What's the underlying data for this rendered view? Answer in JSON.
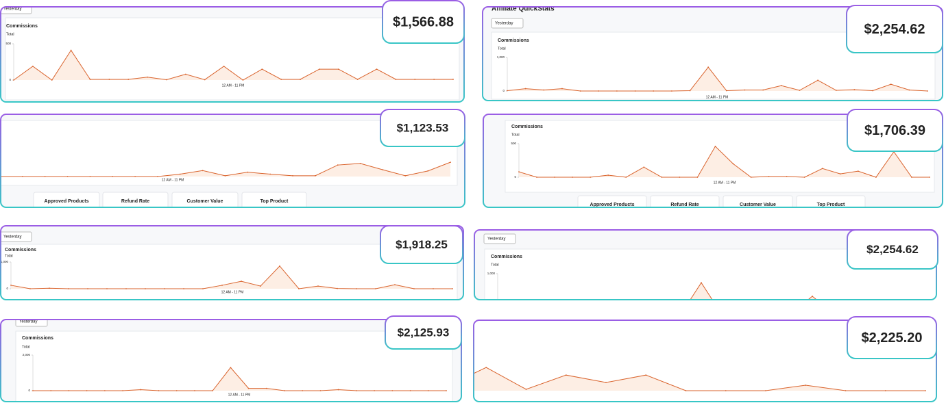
{
  "panels": [
    {
      "amount": "$1,566.88",
      "dropdown": "Yesterday",
      "metric": "Commissions",
      "sub": "Total",
      "x_label": "12 AM - 11 PM",
      "chart": {
        "ylim": [
          0,
          500
        ],
        "yticks": [
          0,
          500
        ],
        "values": [
          0,
          190,
          0,
          410,
          10,
          10,
          10,
          40,
          5,
          80,
          5,
          190,
          0,
          150,
          10,
          10,
          150,
          150,
          10,
          150,
          10,
          10,
          10,
          10
        ]
      }
    },
    {
      "amount": "$2,254.62",
      "title": "Affiliate QuickStats",
      "dropdown": "Yesterday",
      "metric": "Commissions",
      "sub": "Total",
      "x_label": "12 AM - 11 PM",
      "chart": {
        "ylim": [
          0,
          1000
        ],
        "yticks": [
          0,
          {
            "value": 1000,
            "label": "1,000"
          }
        ],
        "values": [
          10,
          70,
          30,
          70,
          0,
          0,
          0,
          0,
          0,
          0,
          10,
          710,
          10,
          30,
          30,
          160,
          20,
          320,
          20,
          40,
          10,
          200,
          30,
          0
        ]
      }
    },
    {
      "amount": "$1,123.53",
      "x_label": "12 AM - 11 PM",
      "tabs": [
        "Approved Products",
        "Refund Rate",
        "Customer Value",
        "Top Product"
      ],
      "chart": {
        "ylim": [
          0,
          1000
        ],
        "values": [
          0,
          0,
          0,
          0,
          0,
          0,
          0,
          0,
          60,
          150,
          20,
          110,
          60,
          20,
          20,
          290,
          330,
          170,
          20,
          140,
          360
        ]
      }
    },
    {
      "amount": "$1,706.39",
      "metric": "Commissions",
      "sub": "Total",
      "x_label": "12 AM - 11 PM",
      "tabs": [
        "Approved Products",
        "Refund Rate",
        "Customer Value",
        "Top Product"
      ],
      "chart": {
        "ylim": [
          0,
          500
        ],
        "yticks": [
          0,
          500
        ],
        "values": [
          80,
          0,
          0,
          0,
          0,
          30,
          0,
          150,
          0,
          0,
          0,
          460,
          200,
          0,
          10,
          10,
          0,
          130,
          50,
          90,
          0,
          380,
          0,
          0
        ]
      }
    },
    {
      "amount": "$1,918.25",
      "dropdown": "Yesterday",
      "metric": "Commissions",
      "sub": "Total",
      "x_label": "12 AM - 11 PM",
      "chart": {
        "ylim": [
          0,
          1000
        ],
        "yticks": [
          0,
          {
            "value": 1000,
            "label": "1,000"
          }
        ],
        "values": [
          130,
          0,
          20,
          0,
          0,
          0,
          0,
          0,
          0,
          0,
          0,
          130,
          280,
          100,
          850,
          0,
          100,
          10,
          0,
          0,
          150,
          0,
          0,
          0
        ]
      }
    },
    {
      "amount": "$2,254.62",
      "dropdown": "Yesterday",
      "metric": "Commissions",
      "sub": "Total",
      "chart": {
        "ylim": [
          0,
          1000
        ],
        "yticks": [
          {
            "value": 1000,
            "label": "1,000"
          }
        ],
        "values": [
          0,
          0,
          0,
          0,
          0,
          0,
          0,
          0,
          0,
          0,
          0,
          760,
          0,
          0,
          0,
          0,
          0,
          400,
          0,
          0,
          0,
          0,
          0,
          0,
          0
        ]
      }
    },
    {
      "amount": "$2,125.93",
      "dropdown": "Yesterday",
      "metric": "Commissions",
      "sub": "Total",
      "x_label": "12 AM - 11 PM",
      "chart": {
        "ylim": [
          0,
          2000
        ],
        "yticks": [
          0,
          {
            "value": 2000,
            "label": "2,000"
          }
        ],
        "values": [
          0,
          0,
          0,
          0,
          0,
          0,
          60,
          0,
          0,
          0,
          0,
          1300,
          130,
          130,
          0,
          0,
          0,
          60,
          0,
          0,
          0,
          0,
          0,
          0
        ]
      }
    },
    {
      "amount": "$2,225.20",
      "chart": {
        "ylim": [
          0,
          1000
        ],
        "values": [
          150,
          850,
          50,
          570,
          300,
          570,
          0,
          0,
          0,
          200,
          0,
          0,
          0
        ]
      }
    }
  ]
}
